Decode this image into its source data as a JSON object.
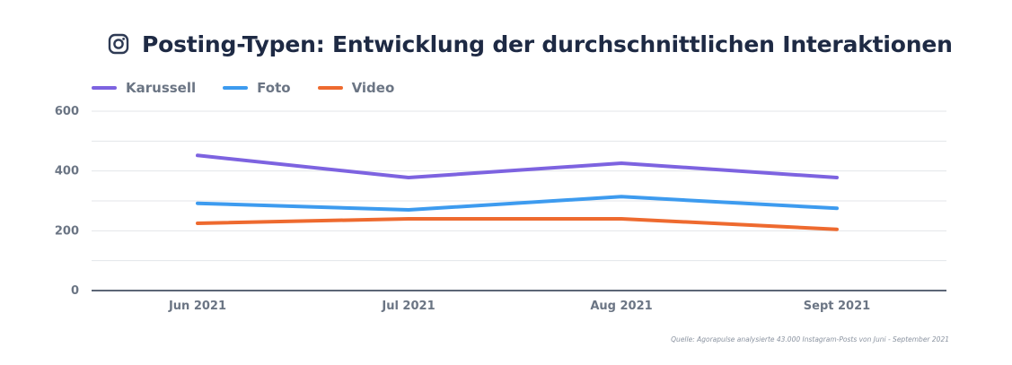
{
  "title": "Posting-Typen: Entwicklung der durchschnittlichen Interaktionen",
  "icon": "instagram-icon",
  "source": "Quelle: Agorapulse analysierte 43.000 Instagram-Posts von Juni - September 2021",
  "legend": [
    {
      "name": "Karussell",
      "color": "#7d63e0"
    },
    {
      "name": "Foto",
      "color": "#3d9bef"
    },
    {
      "name": "Video",
      "color": "#ee6a2f"
    }
  ],
  "chart_data": {
    "type": "line",
    "categories": [
      "Jun 2021",
      "Jul 2021",
      "Aug 2021",
      "Sept 2021"
    ],
    "series": [
      {
        "name": "Karussell",
        "color": "#7d63e0",
        "values": [
          452,
          378,
          426,
          378
        ]
      },
      {
        "name": "Foto",
        "color": "#3d9bef",
        "values": [
          292,
          270,
          314,
          275
        ]
      },
      {
        "name": "Video",
        "color": "#ee6a2f",
        "values": [
          225,
          240,
          240,
          205
        ]
      }
    ],
    "ylim": [
      0,
      600
    ],
    "yticks": [
      0,
      200,
      400,
      600
    ],
    "ytick_labels": [
      "0",
      "200",
      "400",
      "600"
    ],
    "grid": true,
    "legend_position": "top-left"
  }
}
